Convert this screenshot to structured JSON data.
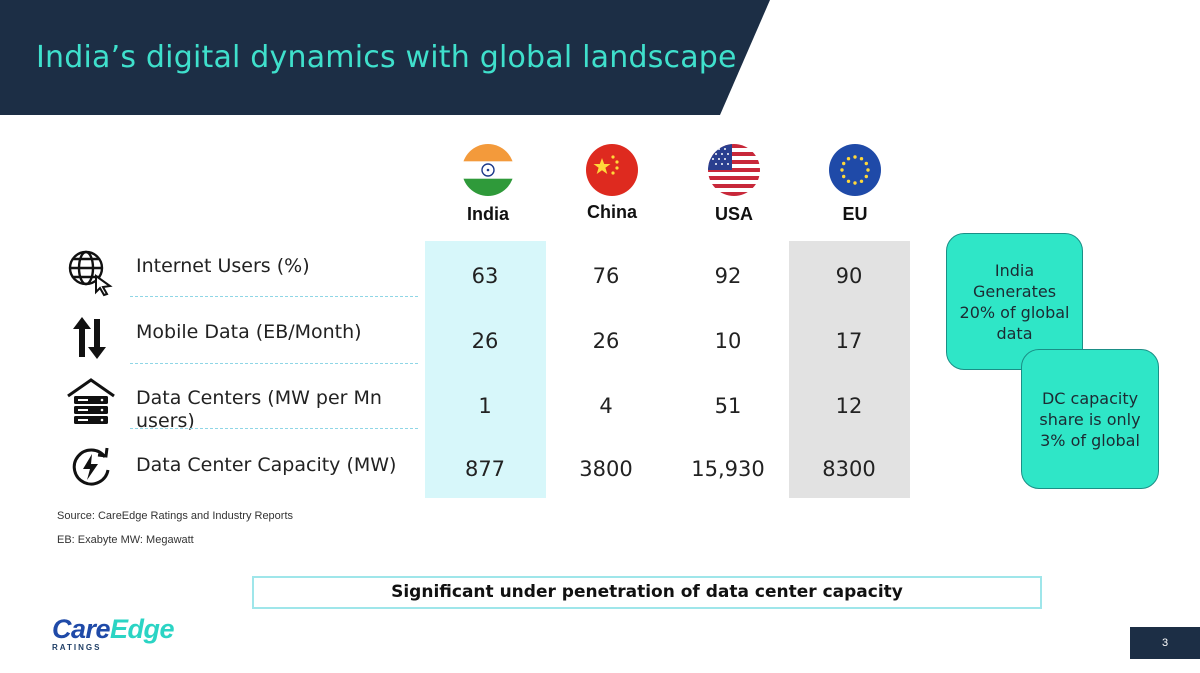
{
  "header": {
    "title": "India’s digital dynamics with global landscape"
  },
  "countries": [
    {
      "name": "India",
      "flag": "india-flag"
    },
    {
      "name": "China",
      "flag": "china-flag"
    },
    {
      "name": "USA",
      "flag": "usa-flag"
    },
    {
      "name": "EU",
      "flag": "eu-flag"
    }
  ],
  "rows": [
    {
      "icon": "globe-cursor-icon",
      "label": "Internet Users (%)",
      "values": [
        "63",
        "76",
        "92",
        "90"
      ]
    },
    {
      "icon": "up-down-arrows-icon",
      "label": "Mobile Data (EB/Month)",
      "values": [
        "26",
        "26",
        "10",
        "17"
      ]
    },
    {
      "icon": "server-rack-icon",
      "label": "Data Centers (MW per Mn users)",
      "values": [
        "1",
        "4",
        "51",
        "12"
      ]
    },
    {
      "icon": "power-cycle-icon",
      "label": "Data Center Capacity (MW)",
      "values": [
        "877",
        "3800",
        "15,930",
        "8300"
      ]
    }
  ],
  "callouts": [
    "India Generates 20% of global data",
    "DC capacity share is only 3% of global"
  ],
  "footnotes": {
    "source": "Source: CareEdge Ratings and Industry Reports",
    "abbrev": "EB: Exabyte MW: Megawatt"
  },
  "banner": "Significant under penetration of data center capacity",
  "logo": {
    "word_care": "Care",
    "word_edge": "Edge",
    "sub": "RATINGS"
  },
  "page_number": "3",
  "colors": {
    "navy": "#1c2e45",
    "teal": "#3fe0cc",
    "callout": "#2fe6c7",
    "india_col": "#d7f7fa",
    "eu_col": "#e2e2e2"
  }
}
